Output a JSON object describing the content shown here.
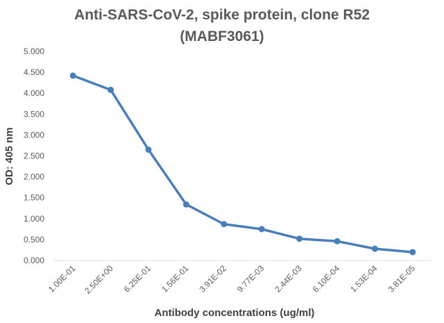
{
  "chart_data": {
    "type": "line",
    "title_lines": [
      "Anti-SARS-CoV-2, spike protein, clone R52",
      "(MABF3061)"
    ],
    "xlabel": "Antibody concentrations (ug/ml)",
    "ylabel": "OD: 405 nm",
    "categories": [
      "1.00E-01",
      "2.50E+00",
      "6.25E-01",
      "1.56E-01",
      "3.91E-02",
      "9.77E-03",
      "2.44E-03",
      "6.10E-04",
      "1.53E-04",
      "3.81E-05"
    ],
    "yticks": [
      "0.000",
      "0.500",
      "1.000",
      "1.500",
      "2.000",
      "2.500",
      "3.000",
      "3.500",
      "4.000",
      "4.500",
      "5.000"
    ],
    "ylim": [
      0,
      5
    ],
    "grid": false,
    "legend": "none",
    "series": [
      {
        "values": [
          4.42,
          4.08,
          2.65,
          1.34,
          0.87,
          0.75,
          0.52,
          0.46,
          0.28,
          0.2
        ],
        "color": "#4A7EBB"
      }
    ]
  }
}
